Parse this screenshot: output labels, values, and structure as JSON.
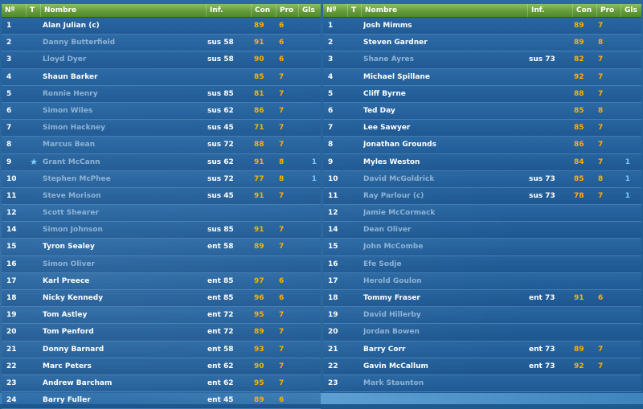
{
  "headers": {
    "num": "Nº",
    "t": "T",
    "name": "Nombre",
    "inf": "Inf.",
    "con": "Con",
    "pro": "Pro",
    "gls": "Gls"
  },
  "colors": {
    "header_green": "#6aa040",
    "value_orange": "#ffb000",
    "goal_blue": "#79c7ff",
    "inactive_name": "#8fb3d4"
  },
  "left_rows": [
    {
      "num": "1",
      "name": "Alan Julian (c)",
      "inf": "",
      "con": "89",
      "pro": "6",
      "gls": "",
      "active": true,
      "star": false
    },
    {
      "num": "2",
      "name": "Danny Butterfield",
      "inf": "sus 58",
      "con": "91",
      "pro": "6",
      "gls": "",
      "active": false,
      "star": false
    },
    {
      "num": "3",
      "name": "Lloyd Dyer",
      "inf": "sus 58",
      "con": "90",
      "pro": "6",
      "gls": "",
      "active": false,
      "star": false
    },
    {
      "num": "4",
      "name": "Shaun Barker",
      "inf": "",
      "con": "85",
      "pro": "7",
      "gls": "",
      "active": true,
      "star": false
    },
    {
      "num": "5",
      "name": "Ronnie Henry",
      "inf": "sus 85",
      "con": "81",
      "pro": "7",
      "gls": "",
      "active": false,
      "star": false
    },
    {
      "num": "6",
      "name": "Simon Wiles",
      "inf": "sus 62",
      "con": "86",
      "pro": "7",
      "gls": "",
      "active": false,
      "star": false
    },
    {
      "num": "7",
      "name": "Simon Hackney",
      "inf": "sus 45",
      "con": "71",
      "pro": "7",
      "gls": "",
      "active": false,
      "star": false
    },
    {
      "num": "8",
      "name": "Marcus Bean",
      "inf": "sus 72",
      "con": "88",
      "pro": "7",
      "gls": "",
      "active": false,
      "star": false
    },
    {
      "num": "9",
      "name": "Grant McCann",
      "inf": "sus 62",
      "con": "91",
      "pro": "8",
      "gls": "1",
      "active": false,
      "star": true
    },
    {
      "num": "10",
      "name": "Stephen McPhee",
      "inf": "sus 72",
      "con": "77",
      "pro": "8",
      "gls": "1",
      "active": false,
      "star": false
    },
    {
      "num": "11",
      "name": "Steve Morison",
      "inf": "sus 45",
      "con": "91",
      "pro": "7",
      "gls": "",
      "active": false,
      "star": false
    },
    {
      "num": "12",
      "name": "Scott Shearer",
      "inf": "",
      "con": "",
      "pro": "",
      "gls": "",
      "active": false,
      "star": false
    },
    {
      "num": "14",
      "name": "Simon Johnson",
      "inf": "sus 85",
      "con": "91",
      "pro": "7",
      "gls": "",
      "active": false,
      "star": false
    },
    {
      "num": "15",
      "name": "Tyron Sealey",
      "inf": "ent 58",
      "con": "89",
      "pro": "7",
      "gls": "",
      "active": true,
      "star": false
    },
    {
      "num": "16",
      "name": "Simon Oliver",
      "inf": "",
      "con": "",
      "pro": "",
      "gls": "",
      "active": false,
      "star": false
    },
    {
      "num": "17",
      "name": "Karl Preece",
      "inf": "ent 85",
      "con": "97",
      "pro": "6",
      "gls": "",
      "active": true,
      "star": false
    },
    {
      "num": "18",
      "name": "Nicky Kennedy",
      "inf": "ent 85",
      "con": "96",
      "pro": "6",
      "gls": "",
      "active": true,
      "star": false
    },
    {
      "num": "19",
      "name": "Tom Astley",
      "inf": "ent 72",
      "con": "95",
      "pro": "7",
      "gls": "",
      "active": true,
      "star": false
    },
    {
      "num": "20",
      "name": "Tom Penford",
      "inf": "ent 72",
      "con": "89",
      "pro": "7",
      "gls": "",
      "active": true,
      "star": false
    },
    {
      "num": "21",
      "name": "Donny Barnard",
      "inf": "ent 58",
      "con": "93",
      "pro": "7",
      "gls": "",
      "active": true,
      "star": false
    },
    {
      "num": "22",
      "name": "Marc Peters",
      "inf": "ent 62",
      "con": "90",
      "pro": "7",
      "gls": "",
      "active": true,
      "star": false
    },
    {
      "num": "23",
      "name": "Andrew Barcham",
      "inf": "ent 62",
      "con": "95",
      "pro": "7",
      "gls": "",
      "active": true,
      "star": false
    },
    {
      "num": "24",
      "name": "Barry Fuller",
      "inf": "ent 45",
      "con": "89",
      "pro": "6",
      "gls": "",
      "active": true,
      "star": false
    }
  ],
  "right_rows": [
    {
      "num": "1",
      "name": "Josh Mimms",
      "inf": "",
      "con": "89",
      "pro": "7",
      "gls": "",
      "active": true
    },
    {
      "num": "2",
      "name": "Steven Gardner",
      "inf": "",
      "con": "89",
      "pro": "8",
      "gls": "",
      "active": true
    },
    {
      "num": "3",
      "name": "Shane Ayres",
      "inf": "sus 73",
      "con": "82",
      "pro": "7",
      "gls": "",
      "active": false
    },
    {
      "num": "4",
      "name": "Michael Spillane",
      "inf": "",
      "con": "92",
      "pro": "7",
      "gls": "",
      "active": true
    },
    {
      "num": "5",
      "name": "Cliff Byrne",
      "inf": "",
      "con": "88",
      "pro": "7",
      "gls": "",
      "active": true
    },
    {
      "num": "6",
      "name": "Ted Day",
      "inf": "",
      "con": "85",
      "pro": "8",
      "gls": "",
      "active": true
    },
    {
      "num": "7",
      "name": "Lee Sawyer",
      "inf": "",
      "con": "85",
      "pro": "7",
      "gls": "",
      "active": true
    },
    {
      "num": "8",
      "name": "Jonathan Grounds",
      "inf": "",
      "con": "86",
      "pro": "7",
      "gls": "",
      "active": true
    },
    {
      "num": "9",
      "name": "Myles Weston",
      "inf": "",
      "con": "84",
      "pro": "7",
      "gls": "1",
      "active": true
    },
    {
      "num": "10",
      "name": "David McGoldrick",
      "inf": "sus 73",
      "con": "85",
      "pro": "8",
      "gls": "1",
      "active": false
    },
    {
      "num": "11",
      "name": "Ray Parlour (c)",
      "inf": "sus 73",
      "con": "78",
      "pro": "7",
      "gls": "1",
      "active": false
    },
    {
      "num": "12",
      "name": "Jamie McCormack",
      "inf": "",
      "con": "",
      "pro": "",
      "gls": "",
      "active": false
    },
    {
      "num": "14",
      "name": "Dean Oliver",
      "inf": "",
      "con": "",
      "pro": "",
      "gls": "",
      "active": false
    },
    {
      "num": "15",
      "name": "John McCombe",
      "inf": "",
      "con": "",
      "pro": "",
      "gls": "",
      "active": false
    },
    {
      "num": "16",
      "name": "Efe Sodje",
      "inf": "",
      "con": "",
      "pro": "",
      "gls": "",
      "active": false
    },
    {
      "num": "17",
      "name": "Herold Goulon",
      "inf": "",
      "con": "",
      "pro": "",
      "gls": "",
      "active": false
    },
    {
      "num": "18",
      "name": "Tommy Fraser",
      "inf": "ent 73",
      "con": "91",
      "pro": "6",
      "gls": "",
      "active": true
    },
    {
      "num": "19",
      "name": "David Hillerby",
      "inf": "",
      "con": "",
      "pro": "",
      "gls": "",
      "active": false
    },
    {
      "num": "20",
      "name": "Jordan Bowen",
      "inf": "",
      "con": "",
      "pro": "",
      "gls": "",
      "active": false
    },
    {
      "num": "21",
      "name": "Barry Corr",
      "inf": "ent 73",
      "con": "89",
      "pro": "7",
      "gls": "",
      "active": true
    },
    {
      "num": "22",
      "name": "Gavin McCallum",
      "inf": "ent 73",
      "con": "92",
      "pro": "7",
      "gls": "",
      "active": true
    },
    {
      "num": "23",
      "name": "Mark Staunton",
      "inf": "",
      "con": "",
      "pro": "",
      "gls": "",
      "active": false
    }
  ]
}
